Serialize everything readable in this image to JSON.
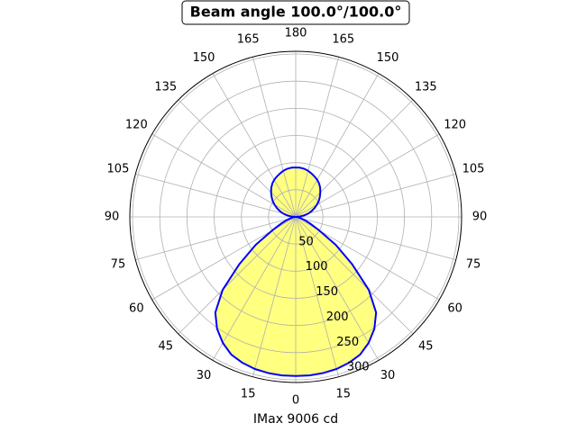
{
  "chart_data": {
    "type": "polar",
    "title": "Beam angle 100.0°/100.0°",
    "xlabel": "IMax 9006 cd",
    "theta": [
      0,
      5,
      10,
      15,
      20,
      25,
      30,
      35,
      40,
      45,
      50,
      55,
      60,
      65,
      70,
      75,
      80,
      85,
      90,
      95,
      100,
      105,
      110,
      115,
      120,
      125,
      130,
      135,
      140,
      145,
      150,
      155,
      160,
      165,
      170,
      175,
      180
    ],
    "values": [
      293,
      293,
      292,
      290,
      286,
      280,
      268,
      252,
      230,
      190,
      135,
      90,
      50,
      30,
      18,
      10,
      5,
      2,
      0,
      8,
      16,
      24,
      31,
      38,
      45,
      52,
      58,
      64,
      70,
      75,
      79,
      82,
      85,
      88,
      90,
      91,
      91
    ],
    "mirror": true,
    "line_color": "#0000ff",
    "fill_color": "#ffff80",
    "rlim": [
      0,
      305
    ],
    "rticks": [
      50,
      100,
      150,
      200,
      250,
      300
    ],
    "rlabel_angle": 22.5,
    "thetaticks": [
      0,
      15,
      30,
      45,
      60,
      75,
      90,
      105,
      120,
      135,
      150,
      165,
      180,
      {
        "value": 195,
        "label": "165"
      },
      {
        "value": 210,
        "label": "150"
      },
      {
        "value": 225,
        "label": "135"
      },
      {
        "value": 240,
        "label": "120"
      },
      {
        "value": 255,
        "label": "105"
      },
      {
        "value": 270,
        "label": "90"
      },
      {
        "value": 285,
        "label": "75"
      },
      {
        "value": 300,
        "label": "60"
      },
      {
        "value": 315,
        "label": "45"
      },
      {
        "value": 330,
        "label": "30"
      },
      {
        "value": 345,
        "label": "15"
      }
    ],
    "grid": true
  }
}
